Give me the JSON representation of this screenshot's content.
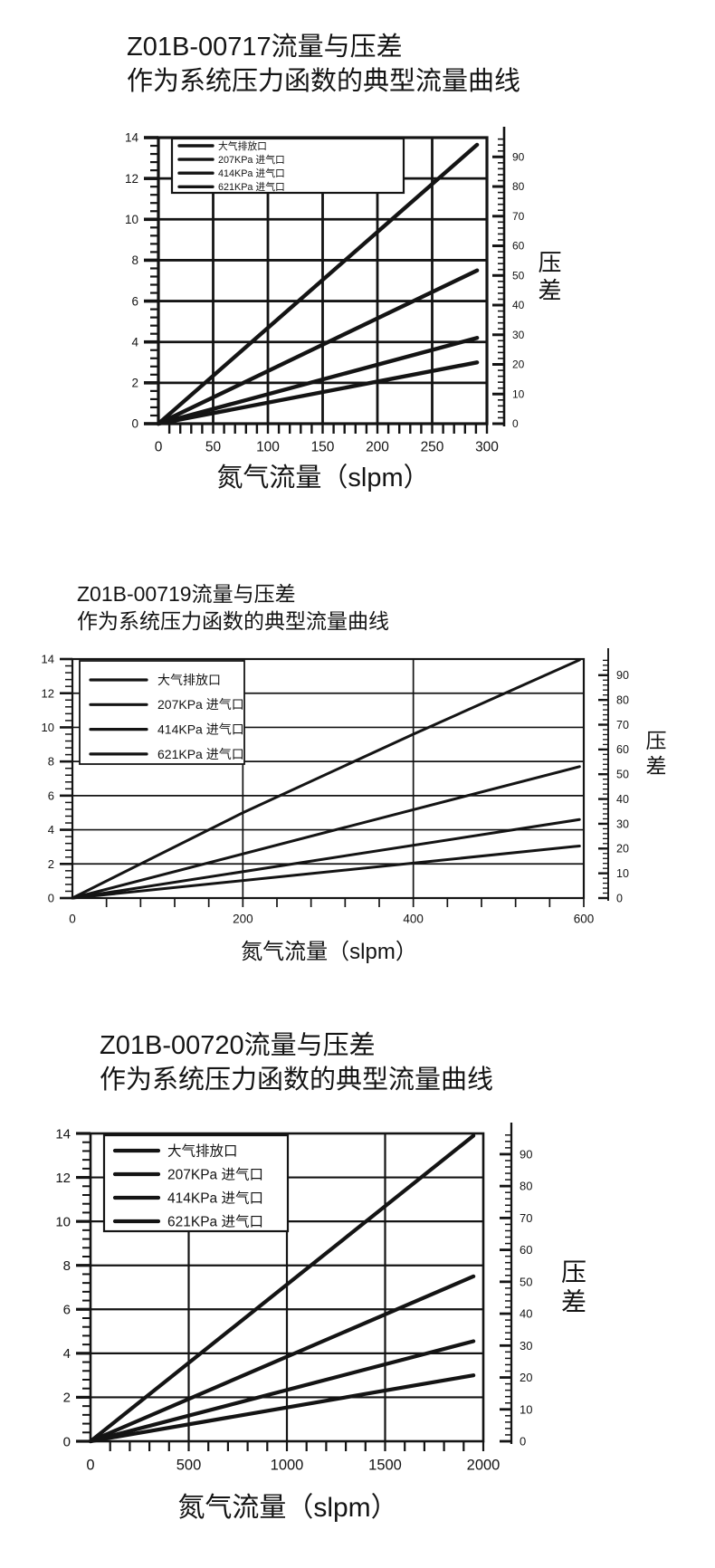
{
  "page": {
    "bg": "#ffffff",
    "ink": "#141414"
  },
  "chart_data": [
    {
      "type": "line",
      "title": "Z01B-00717流量与压差",
      "subtitle": "作为系统压力函数的典型流量曲线",
      "xlabel": "氮气流量（slpm）",
      "right_axis_label": "压差",
      "grid": true,
      "legend_position": "top-left",
      "x_axis": {
        "min": 0,
        "max": 300,
        "major_ticks": [
          0,
          50,
          100,
          150,
          200,
          250,
          300
        ],
        "minor_step": 10
      },
      "y_axis_left": {
        "min": 0,
        "max": 14,
        "major_ticks": [
          0,
          2,
          4,
          6,
          8,
          10,
          12,
          14
        ],
        "minor_step": 0.4
      },
      "y_axis_right": {
        "min": 0,
        "max": 96.5,
        "major_ticks": [
          0,
          10,
          20,
          30,
          40,
          50,
          60,
          70,
          80,
          90
        ],
        "minor_step": 2
      },
      "series": [
        {
          "name": "大气排放口",
          "points": [
            [
              0,
              0
            ],
            [
              291,
              13.65
            ]
          ]
        },
        {
          "name": "207KPa 进气口",
          "points": [
            [
              0,
              0
            ],
            [
              291,
              7.5
            ]
          ]
        },
        {
          "name": "414KPa 进气口",
          "points": [
            [
              0,
              0
            ],
            [
              291,
              4.2
            ]
          ]
        },
        {
          "name": "621KPa 进气口",
          "points": [
            [
              0,
              0
            ],
            [
              291,
              3.0
            ]
          ]
        }
      ]
    },
    {
      "type": "line",
      "title": "Z01B-00719流量与压差",
      "subtitle": "作为系统压力函数的典型流量曲线",
      "xlabel": "氮气流量（slpm）",
      "right_axis_label": "压差",
      "grid": true,
      "legend_position": "top-left",
      "x_axis": {
        "min": 0,
        "max": 600,
        "major_ticks": [
          0,
          200,
          400,
          600
        ],
        "minor_step": 40
      },
      "y_axis_left": {
        "min": 0,
        "max": 14,
        "major_ticks": [
          0,
          2,
          4,
          6,
          8,
          10,
          12,
          14
        ],
        "minor_step": 0.4
      },
      "y_axis_right": {
        "min": 0,
        "max": 96.5,
        "major_ticks": [
          0,
          10,
          20,
          30,
          40,
          50,
          60,
          70,
          80,
          90
        ],
        "minor_step": 2
      },
      "series": [
        {
          "name": "大气排放口",
          "points": [
            [
              0,
              0
            ],
            [
              200,
              5.0
            ],
            [
              400,
              9.6
            ],
            [
              595,
              13.95
            ]
          ]
        },
        {
          "name": "207KPa 进气口",
          "points": [
            [
              0,
              0
            ],
            [
              595,
              7.7
            ]
          ]
        },
        {
          "name": "414KPa 进气口",
          "points": [
            [
              0,
              0
            ],
            [
              595,
              4.6
            ]
          ]
        },
        {
          "name": "621KPa 进气口",
          "points": [
            [
              0,
              0
            ],
            [
              595,
              3.05
            ]
          ]
        }
      ]
    },
    {
      "type": "line",
      "title": "Z01B-00720流量与压差",
      "subtitle": "作为系统压力函数的典型流量曲线",
      "xlabel": "氮气流量（slpm）",
      "right_axis_label": "压差",
      "grid": true,
      "legend_position": "top-left",
      "x_axis": {
        "min": 0,
        "max": 2000,
        "major_ticks": [
          0,
          500,
          1000,
          1500,
          2000
        ],
        "minor_step": 100
      },
      "y_axis_left": {
        "min": 0,
        "max": 14,
        "major_ticks": [
          0,
          2,
          4,
          6,
          8,
          10,
          12,
          14
        ],
        "minor_step": 0.4
      },
      "y_axis_right": {
        "min": 0,
        "max": 96.5,
        "major_ticks": [
          0,
          10,
          20,
          30,
          40,
          50,
          60,
          70,
          80,
          90
        ],
        "minor_step": 2
      },
      "series": [
        {
          "name": "大气排放口",
          "points": [
            [
              0,
              0
            ],
            [
              1950,
              13.9
            ]
          ]
        },
        {
          "name": "207KPa 进气口",
          "points": [
            [
              0,
              0
            ],
            [
              1950,
              7.5
            ]
          ]
        },
        {
          "name": "414KPa 进气口",
          "points": [
            [
              0,
              0
            ],
            [
              1950,
              4.55
            ]
          ]
        },
        {
          "name": "621KPa 进气口",
          "points": [
            [
              0,
              0
            ],
            [
              1950,
              3.0
            ]
          ]
        }
      ]
    }
  ]
}
